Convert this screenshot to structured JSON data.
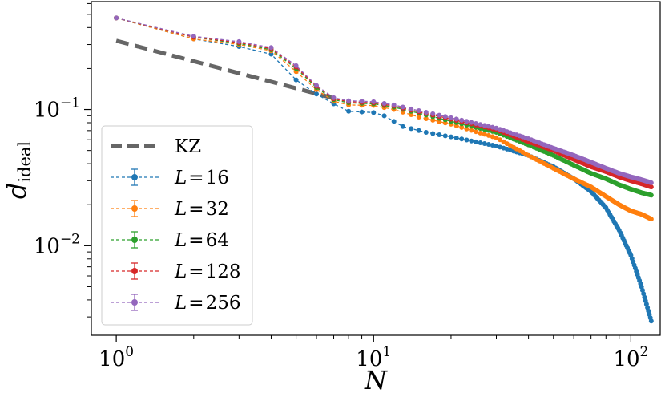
{
  "chart_data": {
    "type": "line",
    "xlabel": "N",
    "ylabel": "d",
    "ylabel_sub": "ideal",
    "x_scale": "log",
    "y_scale": "log",
    "xlim": [
      0.8,
      130
    ],
    "ylim": [
      0.0022,
      0.62
    ],
    "x_ticks": [
      {
        "base": "10",
        "exp": "0",
        "value": 1
      },
      {
        "base": "10",
        "exp": "1",
        "value": 10
      },
      {
        "base": "10",
        "exp": "2",
        "value": 100
      }
    ],
    "y_ticks": [
      {
        "base": "10",
        "exp": "−1",
        "value": 0.1
      },
      {
        "base": "10",
        "exp": "−2",
        "value": 0.01
      }
    ],
    "grid": false,
    "legend_position": "lower-left",
    "kz_line": {
      "name": "KZ",
      "color": "#666666",
      "points": [
        [
          1,
          0.32
        ],
        [
          7,
          0.121
        ]
      ]
    },
    "series": [
      {
        "name": "L = 16",
        "legend_var": "L",
        "legend_val": "16",
        "color": "#1f77b4",
        "anchors": [
          [
            1,
            0.47
          ],
          [
            2,
            0.33
          ],
          [
            3,
            0.29
          ],
          [
            4,
            0.255
          ],
          [
            5,
            0.165
          ],
          [
            6,
            0.13
          ],
          [
            7,
            0.11
          ],
          [
            8,
            0.097
          ],
          [
            10,
            0.095
          ],
          [
            11,
            0.09
          ],
          [
            13,
            0.075
          ],
          [
            16,
            0.068
          ],
          [
            20,
            0.063
          ],
          [
            30,
            0.054
          ],
          [
            40,
            0.046
          ],
          [
            50,
            0.038
          ],
          [
            60,
            0.031
          ],
          [
            70,
            0.025
          ],
          [
            80,
            0.019
          ],
          [
            90,
            0.013
          ],
          [
            100,
            0.0085
          ],
          [
            110,
            0.005
          ],
          [
            120,
            0.0028
          ]
        ]
      },
      {
        "name": "L = 32",
        "legend_var": "L",
        "legend_val": "32",
        "color": "#ff7f0e",
        "anchors": [
          [
            1,
            0.47
          ],
          [
            2,
            0.33
          ],
          [
            3,
            0.3
          ],
          [
            4,
            0.27
          ],
          [
            5,
            0.19
          ],
          [
            6,
            0.14
          ],
          [
            7,
            0.115
          ],
          [
            8,
            0.108
          ],
          [
            10,
            0.107
          ],
          [
            12,
            0.1
          ],
          [
            15,
            0.088
          ],
          [
            20,
            0.078
          ],
          [
            30,
            0.062
          ],
          [
            40,
            0.046
          ],
          [
            50,
            0.037
          ],
          [
            60,
            0.031
          ],
          [
            70,
            0.027
          ],
          [
            80,
            0.023
          ],
          [
            90,
            0.02
          ],
          [
            100,
            0.018
          ],
          [
            110,
            0.017
          ],
          [
            120,
            0.0157
          ]
        ]
      },
      {
        "name": "L = 64",
        "legend_var": "L",
        "legend_val": "64",
        "color": "#2ca02c",
        "anchors": [
          [
            1,
            0.47
          ],
          [
            2,
            0.34
          ],
          [
            3,
            0.305
          ],
          [
            4,
            0.275
          ],
          [
            5,
            0.2
          ],
          [
            6,
            0.145
          ],
          [
            7,
            0.118
          ],
          [
            8,
            0.112
          ],
          [
            10,
            0.11
          ],
          [
            12,
            0.104
          ],
          [
            15,
            0.094
          ],
          [
            20,
            0.082
          ],
          [
            30,
            0.068
          ],
          [
            40,
            0.055
          ],
          [
            50,
            0.046
          ],
          [
            60,
            0.039
          ],
          [
            70,
            0.034
          ],
          [
            80,
            0.031
          ],
          [
            90,
            0.028
          ],
          [
            100,
            0.026
          ],
          [
            110,
            0.0245
          ],
          [
            120,
            0.0235
          ]
        ]
      },
      {
        "name": "L = 128",
        "legend_var": "L",
        "legend_val": "128",
        "color": "#d62728",
        "anchors": [
          [
            1,
            0.47
          ],
          [
            2,
            0.34
          ],
          [
            3,
            0.31
          ],
          [
            4,
            0.28
          ],
          [
            5,
            0.205
          ],
          [
            6,
            0.148
          ],
          [
            7,
            0.12
          ],
          [
            8,
            0.114
          ],
          [
            10,
            0.112
          ],
          [
            12,
            0.106
          ],
          [
            15,
            0.096
          ],
          [
            20,
            0.085
          ],
          [
            30,
            0.071
          ],
          [
            40,
            0.058
          ],
          [
            50,
            0.05
          ],
          [
            60,
            0.043
          ],
          [
            70,
            0.038
          ],
          [
            80,
            0.035
          ],
          [
            90,
            0.032
          ],
          [
            100,
            0.03
          ],
          [
            110,
            0.0285
          ],
          [
            120,
            0.027
          ]
        ]
      },
      {
        "name": "L = 256",
        "legend_var": "L",
        "legend_val": "256",
        "color": "#9467bd",
        "anchors": [
          [
            1,
            0.47
          ],
          [
            2,
            0.345
          ],
          [
            3,
            0.315
          ],
          [
            4,
            0.285
          ],
          [
            5,
            0.21
          ],
          [
            6,
            0.15
          ],
          [
            7,
            0.122
          ],
          [
            8,
            0.116
          ],
          [
            10,
            0.114
          ],
          [
            12,
            0.108
          ],
          [
            15,
            0.098
          ],
          [
            20,
            0.087
          ],
          [
            30,
            0.073
          ],
          [
            40,
            0.061
          ],
          [
            50,
            0.052
          ],
          [
            60,
            0.046
          ],
          [
            70,
            0.041
          ],
          [
            80,
            0.037
          ],
          [
            90,
            0.034
          ],
          [
            100,
            0.032
          ],
          [
            110,
            0.0305
          ],
          [
            120,
            0.029
          ]
        ]
      }
    ],
    "n_points": 120
  }
}
